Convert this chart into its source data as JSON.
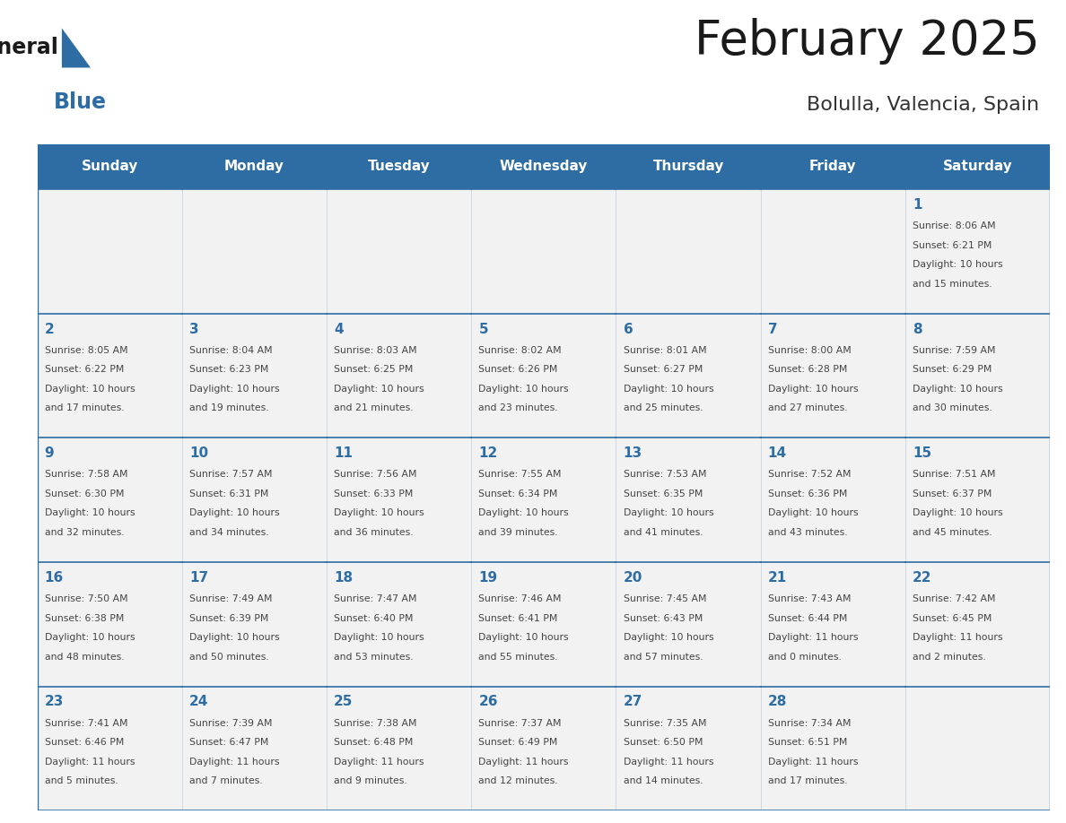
{
  "title": "February 2025",
  "subtitle": "Bolulla, Valencia, Spain",
  "header_bg": "#2E6DA4",
  "header_text_color": "#FFFFFF",
  "cell_bg_light": "#F2F2F2",
  "day_number_color": "#2E6DA4",
  "info_text_color": "#444444",
  "border_color": "#2E6DA4",
  "days_of_week": [
    "Sunday",
    "Monday",
    "Tuesday",
    "Wednesday",
    "Thursday",
    "Friday",
    "Saturday"
  ],
  "weeks": [
    [
      null,
      null,
      null,
      null,
      null,
      null,
      1
    ],
    [
      2,
      3,
      4,
      5,
      6,
      7,
      8
    ],
    [
      9,
      10,
      11,
      12,
      13,
      14,
      15
    ],
    [
      16,
      17,
      18,
      19,
      20,
      21,
      22
    ],
    [
      23,
      24,
      25,
      26,
      27,
      28,
      null
    ]
  ],
  "cell_data": {
    "1": {
      "sunrise": "8:06 AM",
      "sunset": "6:21 PM",
      "daylight_h": "10 hours",
      "daylight_m": "and 15 minutes."
    },
    "2": {
      "sunrise": "8:05 AM",
      "sunset": "6:22 PM",
      "daylight_h": "10 hours",
      "daylight_m": "and 17 minutes."
    },
    "3": {
      "sunrise": "8:04 AM",
      "sunset": "6:23 PM",
      "daylight_h": "10 hours",
      "daylight_m": "and 19 minutes."
    },
    "4": {
      "sunrise": "8:03 AM",
      "sunset": "6:25 PM",
      "daylight_h": "10 hours",
      "daylight_m": "and 21 minutes."
    },
    "5": {
      "sunrise": "8:02 AM",
      "sunset": "6:26 PM",
      "daylight_h": "10 hours",
      "daylight_m": "and 23 minutes."
    },
    "6": {
      "sunrise": "8:01 AM",
      "sunset": "6:27 PM",
      "daylight_h": "10 hours",
      "daylight_m": "and 25 minutes."
    },
    "7": {
      "sunrise": "8:00 AM",
      "sunset": "6:28 PM",
      "daylight_h": "10 hours",
      "daylight_m": "and 27 minutes."
    },
    "8": {
      "sunrise": "7:59 AM",
      "sunset": "6:29 PM",
      "daylight_h": "10 hours",
      "daylight_m": "and 30 minutes."
    },
    "9": {
      "sunrise": "7:58 AM",
      "sunset": "6:30 PM",
      "daylight_h": "10 hours",
      "daylight_m": "and 32 minutes."
    },
    "10": {
      "sunrise": "7:57 AM",
      "sunset": "6:31 PM",
      "daylight_h": "10 hours",
      "daylight_m": "and 34 minutes."
    },
    "11": {
      "sunrise": "7:56 AM",
      "sunset": "6:33 PM",
      "daylight_h": "10 hours",
      "daylight_m": "and 36 minutes."
    },
    "12": {
      "sunrise": "7:55 AM",
      "sunset": "6:34 PM",
      "daylight_h": "10 hours",
      "daylight_m": "and 39 minutes."
    },
    "13": {
      "sunrise": "7:53 AM",
      "sunset": "6:35 PM",
      "daylight_h": "10 hours",
      "daylight_m": "and 41 minutes."
    },
    "14": {
      "sunrise": "7:52 AM",
      "sunset": "6:36 PM",
      "daylight_h": "10 hours",
      "daylight_m": "and 43 minutes."
    },
    "15": {
      "sunrise": "7:51 AM",
      "sunset": "6:37 PM",
      "daylight_h": "10 hours",
      "daylight_m": "and 45 minutes."
    },
    "16": {
      "sunrise": "7:50 AM",
      "sunset": "6:38 PM",
      "daylight_h": "10 hours",
      "daylight_m": "and 48 minutes."
    },
    "17": {
      "sunrise": "7:49 AM",
      "sunset": "6:39 PM",
      "daylight_h": "10 hours",
      "daylight_m": "and 50 minutes."
    },
    "18": {
      "sunrise": "7:47 AM",
      "sunset": "6:40 PM",
      "daylight_h": "10 hours",
      "daylight_m": "and 53 minutes."
    },
    "19": {
      "sunrise": "7:46 AM",
      "sunset": "6:41 PM",
      "daylight_h": "10 hours",
      "daylight_m": "and 55 minutes."
    },
    "20": {
      "sunrise": "7:45 AM",
      "sunset": "6:43 PM",
      "daylight_h": "10 hours",
      "daylight_m": "and 57 minutes."
    },
    "21": {
      "sunrise": "7:43 AM",
      "sunset": "6:44 PM",
      "daylight_h": "11 hours",
      "daylight_m": "and 0 minutes."
    },
    "22": {
      "sunrise": "7:42 AM",
      "sunset": "6:45 PM",
      "daylight_h": "11 hours",
      "daylight_m": "and 2 minutes."
    },
    "23": {
      "sunrise": "7:41 AM",
      "sunset": "6:46 PM",
      "daylight_h": "11 hours",
      "daylight_m": "and 5 minutes."
    },
    "24": {
      "sunrise": "7:39 AM",
      "sunset": "6:47 PM",
      "daylight_h": "11 hours",
      "daylight_m": "and 7 minutes."
    },
    "25": {
      "sunrise": "7:38 AM",
      "sunset": "6:48 PM",
      "daylight_h": "11 hours",
      "daylight_m": "and 9 minutes."
    },
    "26": {
      "sunrise": "7:37 AM",
      "sunset": "6:49 PM",
      "daylight_h": "11 hours",
      "daylight_m": "and 12 minutes."
    },
    "27": {
      "sunrise": "7:35 AM",
      "sunset": "6:50 PM",
      "daylight_h": "11 hours",
      "daylight_m": "and 14 minutes."
    },
    "28": {
      "sunrise": "7:34 AM",
      "sunset": "6:51 PM",
      "daylight_h": "11 hours",
      "daylight_m": "and 17 minutes."
    }
  },
  "logo_text1": "General",
  "logo_text2": "Blue"
}
